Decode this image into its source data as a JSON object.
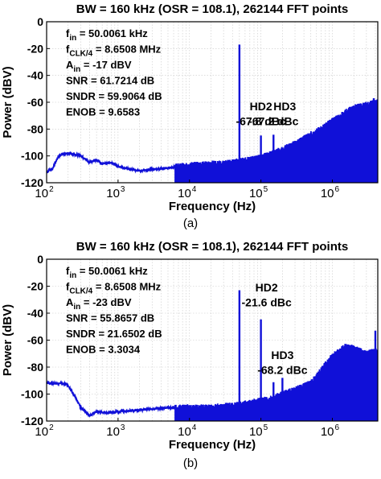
{
  "chart_data": [
    {
      "type": "line",
      "panel_label": "(a)",
      "title": "BW = 160 kHz (OSR = 108.1), 262144 FFT points",
      "xlabel": "Frequency (Hz)",
      "ylabel": "Power (dBV)",
      "x_scale": "log",
      "xlim": [
        100,
        4325400
      ],
      "ylim": [
        -120,
        0
      ],
      "x_ticks": [
        100,
        1000,
        10000,
        100000,
        1000000
      ],
      "x_tick_labels": [
        {
          "base": "10",
          "exp": "2"
        },
        {
          "base": "10",
          "exp": "3"
        },
        {
          "base": "10",
          "exp": "4"
        },
        {
          "base": "10",
          "exp": "5"
        },
        {
          "base": "10",
          "exp": "6"
        }
      ],
      "y_ticks": [
        0,
        -20,
        -40,
        -60,
        -80,
        -100,
        -120
      ],
      "y_tick_labels": [
        "0",
        "-20",
        "-40",
        "-60",
        "-80",
        "-100",
        "-120"
      ],
      "grid": true,
      "color": "#1010d8",
      "info_lines": [
        {
          "main": "f",
          "sub": "in",
          "rest": " = 50.0061 kHz"
        },
        {
          "main": "f",
          "sub": "CLK/4",
          "rest": " = 8.6508 MHz"
        },
        {
          "main": "A",
          "sub": "in",
          "rest": " = -17 dBV"
        },
        {
          "main": "SNR = 61.7214 dB",
          "sub": "",
          "rest": ""
        },
        {
          "main": "SNDR = 59.9064 dB",
          "sub": "",
          "rest": ""
        },
        {
          "main": "ENOB = 9.6583",
          "sub": "",
          "rest": ""
        }
      ],
      "annotations": [
        {
          "text": "HD2",
          "x": 100000,
          "y": -66,
          "anchor": "middle"
        },
        {
          "text": "-67.8 dBc",
          "x": 100000,
          "y": -77,
          "anchor": "middle"
        },
        {
          "text": "HD3",
          "x": 150000,
          "y": -66,
          "anchor": "start"
        },
        {
          "text": "-67.2 dBc",
          "x": 150000,
          "y": -77,
          "anchor": "middle"
        }
      ],
      "envelope": [
        [
          100,
          -112
        ],
        [
          120,
          -110
        ],
        [
          140,
          -102
        ],
        [
          160,
          -99
        ],
        [
          200,
          -98
        ],
        [
          250,
          -99
        ],
        [
          300,
          -100
        ],
        [
          400,
          -105
        ],
        [
          500,
          -103
        ],
        [
          600,
          -106
        ],
        [
          800,
          -105
        ],
        [
          1000,
          -108
        ],
        [
          1500,
          -110
        ],
        [
          2000,
          -111
        ],
        [
          3000,
          -110
        ],
        [
          5000,
          -109
        ],
        [
          7000,
          -108
        ],
        [
          10000,
          -107
        ],
        [
          20000,
          -106
        ],
        [
          30000,
          -106
        ],
        [
          50000,
          -104
        ],
        [
          70000,
          -103
        ],
        [
          100000,
          -101
        ],
        [
          150000,
          -98
        ],
        [
          200000,
          -95
        ],
        [
          300000,
          -91
        ],
        [
          500000,
          -84
        ],
        [
          700000,
          -80
        ],
        [
          1000000,
          -74
        ],
        [
          1500000,
          -68
        ],
        [
          2000000,
          -64
        ],
        [
          3000000,
          -62
        ],
        [
          4325400,
          -60
        ]
      ],
      "peaks": [
        {
          "x": 50006,
          "y": -17
        },
        {
          "x": 100012,
          "y": -84.8
        },
        {
          "x": 150018,
          "y": -84.2
        },
        {
          "x": 3800000,
          "y": -57
        },
        {
          "x": 4100000,
          "y": -60
        }
      ]
    },
    {
      "type": "line",
      "panel_label": "(b)",
      "title": "BW = 160 kHz (OSR = 108.1), 262144 FFT points",
      "xlabel": "Frequency (Hz)",
      "ylabel": "Power (dBV)",
      "x_scale": "log",
      "xlim": [
        100,
        4325400
      ],
      "ylim": [
        -120,
        0
      ],
      "x_ticks": [
        100,
        1000,
        10000,
        100000,
        1000000
      ],
      "x_tick_labels": [
        {
          "base": "10",
          "exp": "2"
        },
        {
          "base": "10",
          "exp": "3"
        },
        {
          "base": "10",
          "exp": "4"
        },
        {
          "base": "10",
          "exp": "5"
        },
        {
          "base": "10",
          "exp": "6"
        }
      ],
      "y_ticks": [
        0,
        -20,
        -40,
        -60,
        -80,
        -100,
        -120
      ],
      "y_tick_labels": [
        "0",
        "-20",
        "-40",
        "-60",
        "-80",
        "-100",
        "-120"
      ],
      "grid": true,
      "color": "#1010d8",
      "info_lines": [
        {
          "main": "f",
          "sub": "in",
          "rest": " = 50.0061 kHz"
        },
        {
          "main": "f",
          "sub": "CLK/4",
          "rest": " = 8.6508 MHz"
        },
        {
          "main": "A",
          "sub": "in",
          "rest": " = -23 dBV"
        },
        {
          "main": "SNR = 55.8657 dB",
          "sub": "",
          "rest": ""
        },
        {
          "main": "SNDR = 21.6502 dB",
          "sub": "",
          "rest": ""
        },
        {
          "main": "ENOB = 3.3034",
          "sub": "",
          "rest": ""
        }
      ],
      "annotations": [
        {
          "text": "HD2",
          "x": 120000,
          "y": -24,
          "anchor": "middle"
        },
        {
          "text": "-21.6 dBc",
          "x": 120000,
          "y": -35,
          "anchor": "middle"
        },
        {
          "text": "HD3",
          "x": 200000,
          "y": -74,
          "anchor": "middle"
        },
        {
          "text": "-68.2 dBc",
          "x": 200000,
          "y": -85,
          "anchor": "middle"
        }
      ],
      "envelope": [
        [
          100,
          -92
        ],
        [
          180,
          -92
        ],
        [
          200,
          -94
        ],
        [
          250,
          -102
        ],
        [
          300,
          -110
        ],
        [
          400,
          -116
        ],
        [
          500,
          -113
        ],
        [
          700,
          -114
        ],
        [
          1000,
          -113
        ],
        [
          2000,
          -112
        ],
        [
          5000,
          -110
        ],
        [
          10000,
          -110
        ],
        [
          20000,
          -110
        ],
        [
          50000,
          -108
        ],
        [
          100000,
          -105
        ],
        [
          150000,
          -103
        ],
        [
          200000,
          -100
        ],
        [
          300000,
          -97
        ],
        [
          500000,
          -92
        ],
        [
          700000,
          -82
        ],
        [
          1000000,
          -72
        ],
        [
          1500000,
          -65
        ],
        [
          2000000,
          -66
        ],
        [
          3000000,
          -70
        ],
        [
          4325400,
          -68
        ]
      ],
      "peaks": [
        {
          "x": 50006,
          "y": -23
        },
        {
          "x": 100012,
          "y": -44.6
        },
        {
          "x": 150018,
          "y": -91.2
        },
        {
          "x": 200024,
          "y": -88
        },
        {
          "x": 4000000,
          "y": -53
        }
      ]
    }
  ]
}
